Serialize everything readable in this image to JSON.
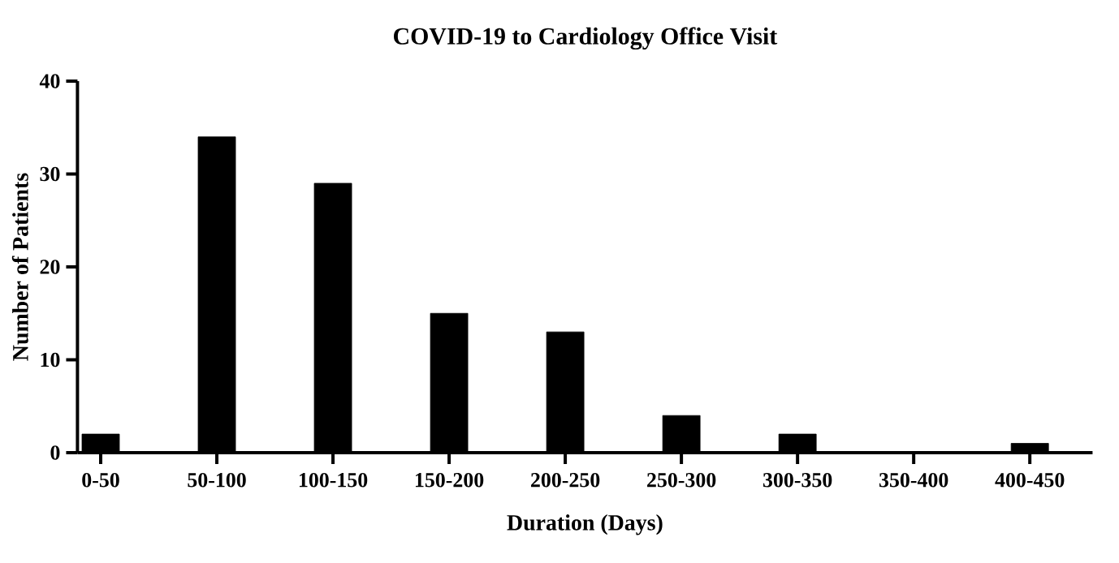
{
  "chart_data": {
    "type": "bar",
    "title": "COVID-19 to Cardiology Office Visit",
    "xlabel": "Duration (Days)",
    "ylabel": "Number of Patients",
    "categories": [
      "0-50",
      "50-100",
      "100-150",
      "150-200",
      "200-250",
      "250-300",
      "300-350",
      "350-400",
      "400-450"
    ],
    "values": [
      2,
      34,
      29,
      15,
      13,
      4,
      2,
      0,
      1
    ],
    "color": "#000000",
    "ylim": [
      0,
      40
    ],
    "yticks": [
      0,
      10,
      20,
      30,
      40
    ],
    "grid": false
  }
}
